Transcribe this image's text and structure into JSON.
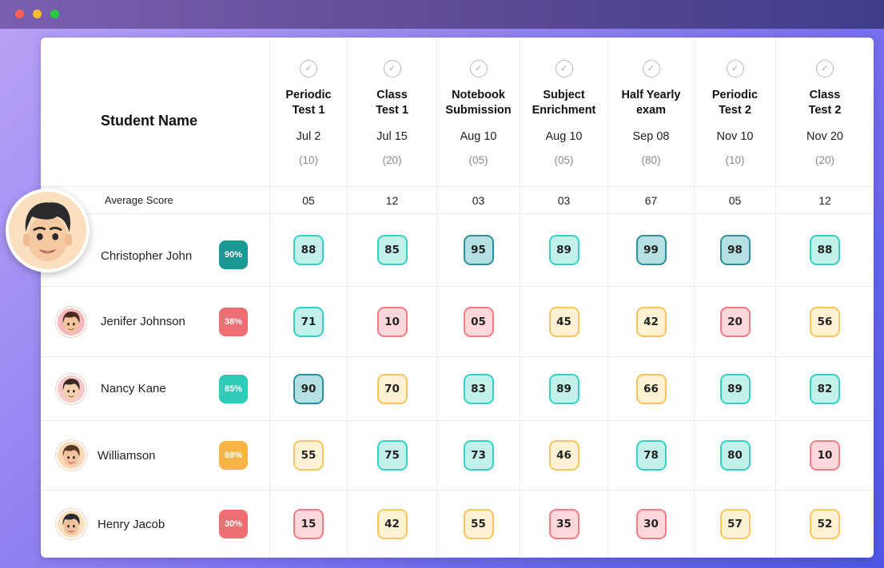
{
  "header": {
    "student_name_label": "Student Name",
    "average_label": "Average Score"
  },
  "tests": [
    {
      "name": "Periodic\nTest  1",
      "date": "Jul 2",
      "max": "(10)",
      "average": "05"
    },
    {
      "name": "Class\nTest 1",
      "date": "Jul 15",
      "max": "(20)",
      "average": "12"
    },
    {
      "name": "Notebook\nSubmission",
      "date": "Aug 10",
      "max": "(05)",
      "average": "03"
    },
    {
      "name": "Subject\nEnrichment",
      "date": "Aug 10",
      "max": "(05)",
      "average": "03"
    },
    {
      "name": "Half Yearly\nexam",
      "date": "Sep 08",
      "max": "(80)",
      "average": "67"
    },
    {
      "name": "Periodic\nTest  2",
      "date": "Nov 10",
      "max": "(10)",
      "average": "05"
    },
    {
      "name": "Class\nTest 2",
      "date": "Nov 20",
      "max": "(20)",
      "average": "12"
    }
  ],
  "students": [
    {
      "name": "Christopher John",
      "percent": "90%",
      "percent_color": "#1c9894",
      "scores": [
        "88",
        "85",
        "95",
        "89",
        "99",
        "98",
        "88"
      ],
      "levels": [
        "teal",
        "teal",
        "dark",
        "teal",
        "dark",
        "dark",
        "teal"
      ]
    },
    {
      "name": "Jenifer Johnson",
      "percent": "38%",
      "percent_color": "#ee6f73",
      "scores": [
        "71",
        "10",
        "05",
        "45",
        "42",
        "20",
        "56"
      ],
      "levels": [
        "teal",
        "red",
        "red",
        "yellow",
        "yellow",
        "red",
        "yellow"
      ]
    },
    {
      "name": "Nancy Kane",
      "percent": "85%",
      "percent_color": "#2fcbb8",
      "scores": [
        "90",
        "70",
        "83",
        "89",
        "66",
        "89",
        "82"
      ],
      "levels": [
        "dark",
        "yellow",
        "teal",
        "teal",
        "yellow",
        "teal",
        "teal"
      ]
    },
    {
      "name": "Williamson",
      "percent": "69%",
      "percent_color": "#f8b444",
      "scores": [
        "55",
        "75",
        "73",
        "46",
        "78",
        "80",
        "10"
      ],
      "levels": [
        "yellow",
        "teal",
        "teal",
        "yellow",
        "teal",
        "teal",
        "red"
      ]
    },
    {
      "name": "Henry Jacob",
      "percent": "30%",
      "percent_color": "#ee6f73",
      "scores": [
        "15",
        "42",
        "55",
        "35",
        "30",
        "57",
        "52"
      ],
      "levels": [
        "red",
        "yellow",
        "yellow",
        "red",
        "red",
        "yellow",
        "yellow"
      ]
    }
  ],
  "icons": {
    "test_check": "check-circle-icon",
    "avatar": "memoji-avatar-icon"
  }
}
